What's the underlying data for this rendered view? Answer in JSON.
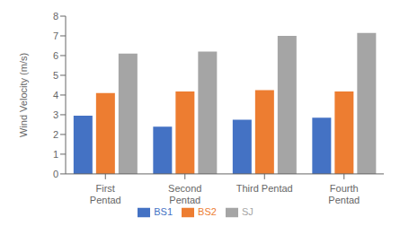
{
  "chart_data": {
    "type": "bar",
    "categories": [
      "First\nPentad",
      "Second\nPentad",
      "Third Pentad",
      "Fourth\nPentad"
    ],
    "series": [
      {
        "name": "BS1",
        "color": "#4472C4",
        "values": [
          2.95,
          2.4,
          2.75,
          2.85
        ]
      },
      {
        "name": "BS2",
        "color": "#ED7D31",
        "values": [
          4.1,
          4.18,
          4.25,
          4.18
        ]
      },
      {
        "name": "SJ",
        "color": "#A5A5A5",
        "values": [
          6.1,
          6.2,
          7.0,
          7.15
        ]
      }
    ],
    "ylabel": "Wind Velocity (m/s)",
    "ylim": [
      0,
      8
    ],
    "yticks": [
      0,
      1,
      2,
      3,
      4,
      5,
      6,
      7,
      8
    ],
    "grid": false,
    "legend": "bottom"
  }
}
